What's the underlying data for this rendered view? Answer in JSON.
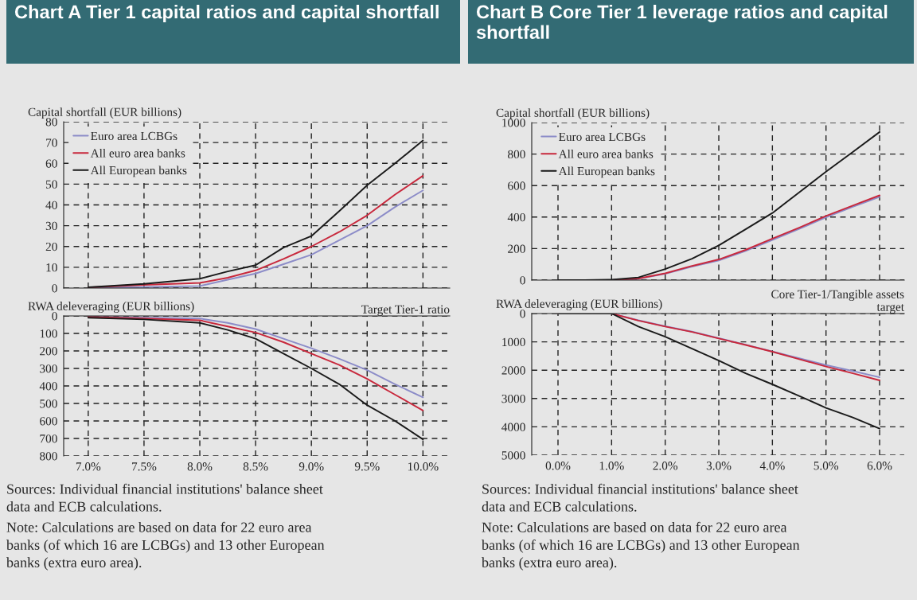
{
  "chart_data": [
    {
      "type": "line",
      "title": "Chart A Tier 1 capital ratios and capital shortfall",
      "ylabel": "Capital shortfall (EUR billions)",
      "x": [
        7.0,
        7.5,
        8.0,
        8.25,
        8.5,
        8.75,
        9.0,
        9.25,
        9.5,
        9.75,
        10.0
      ],
      "series": [
        {
          "name": "Euro area LCBGs",
          "color": "#8c8cc8",
          "values": [
            0,
            0.5,
            1,
            4,
            7,
            11.5,
            16,
            23,
            30,
            39,
            47
          ]
        },
        {
          "name": "All euro area banks",
          "color": "#c8283c",
          "values": [
            0.3,
            1.5,
            2.5,
            5,
            8.5,
            14,
            20,
            27,
            35,
            45,
            54
          ]
        },
        {
          "name": "All European banks",
          "color": "#1a1a1a",
          "values": [
            0.4,
            2,
            4.5,
            8,
            11,
            19.5,
            25,
            37,
            49.5,
            60,
            71
          ]
        }
      ],
      "xlim": [
        6.78,
        10.24
      ],
      "xticks": [
        {
          "value": 7.0,
          "label": null
        },
        {
          "value": 7.5,
          "label": null
        },
        {
          "value": 8.0,
          "label": null
        },
        {
          "value": 8.5,
          "label": null
        },
        {
          "value": 9.0,
          "label": null
        },
        {
          "value": 9.5,
          "label": null
        },
        {
          "value": 10.0,
          "label": null
        }
      ],
      "ylim": [
        0,
        80
      ],
      "yticks": [
        0,
        10,
        20,
        30,
        40,
        50,
        60,
        70,
        80
      ],
      "tick_labels": "y",
      "grid": true,
      "legend": "top left",
      "line_style": "solid"
    },
    {
      "type": "line",
      "ylabel": "RWA deleveraging (EUR billions)",
      "xlabel": "Target Tier-1 ratio",
      "x": [
        7.0,
        7.5,
        8.0,
        8.25,
        8.5,
        8.75,
        9.0,
        9.25,
        9.5,
        9.75,
        10.0
      ],
      "series": [
        {
          "color": "#8c8cc8",
          "values": [
            5,
            10,
            15,
            40,
            75,
            130,
            185,
            245,
            310,
            390,
            465
          ]
        },
        {
          "color": "#c8283c",
          "values": [
            5,
            15,
            25,
            60,
            95,
            150,
            215,
            280,
            360,
            450,
            540
          ]
        },
        {
          "color": "#1a1a1a",
          "values": [
            10,
            20,
            40,
            80,
            130,
            215,
            300,
            390,
            510,
            600,
            705
          ]
        }
      ],
      "xlim": [
        6.78,
        10.24
      ],
      "xticks": [
        {
          "value": 7.0,
          "label": "7.0%"
        },
        {
          "value": 7.5,
          "label": "7.5%"
        },
        {
          "value": 8.0,
          "label": "8.0%"
        },
        {
          "value": 8.5,
          "label": "8.5%"
        },
        {
          "value": 9.0,
          "label": "9.0%"
        },
        {
          "value": 9.5,
          "label": "9.5%"
        },
        {
          "value": 10.0,
          "label": "10.0%"
        }
      ],
      "ylim": [
        800,
        0
      ],
      "yticks": [
        0,
        100,
        200,
        300,
        400,
        500,
        600,
        700,
        800
      ],
      "grid": true,
      "line_style": "solid",
      "annotations": [
        "Sources: Individual financial institutions' balance sheet\ndata and ECB calculations.",
        "Note: Calculations are based on data for 22 euro area\nbanks (of which 16 are LCBGs) and 13 other European\nbanks (extra euro area)."
      ]
    },
    {
      "type": "line",
      "title": "Chart B Core Tier 1 leverage ratios and capital shortfall",
      "ylabel": "Capital shortfall (EUR billions)",
      "x": [
        0,
        0.5,
        1.0,
        1.5,
        2.0,
        2.5,
        3.0,
        3.5,
        4.0,
        4.5,
        5.0,
        5.5,
        6.0
      ],
      "series": [
        {
          "name": "Euro area LCBGs",
          "color": "#8c8cc8",
          "values": [
            0,
            0,
            0,
            8,
            40,
            85,
            125,
            185,
            255,
            325,
            398,
            465,
            528
          ]
        },
        {
          "name": "All euro area banks",
          "color": "#c8283c",
          "values": [
            null,
            null,
            0,
            10,
            43,
            90,
            131,
            192,
            263,
            333,
            407,
            473,
            538
          ]
        },
        {
          "name": "All European banks",
          "color": "#1a1a1a",
          "values": [
            0,
            0,
            3,
            17,
            70,
            136,
            220,
            323,
            426,
            557,
            688,
            813,
            940
          ]
        }
      ],
      "xlim": [
        -0.49,
        6.46
      ],
      "xticks": [
        {
          "value": 0,
          "label": null
        },
        {
          "value": 1,
          "label": null
        },
        {
          "value": 2,
          "label": null
        },
        {
          "value": 3,
          "label": null
        },
        {
          "value": 4,
          "label": null
        },
        {
          "value": 5,
          "label": null
        },
        {
          "value": 6,
          "label": null
        }
      ],
      "ylim": [
        0,
        1000
      ],
      "yticks": [
        0,
        200,
        400,
        600,
        800,
        1000
      ],
      "tick_labels": "y",
      "grid": true,
      "legend": "top left",
      "line_style": "solid"
    },
    {
      "type": "line",
      "ylabel": "RWA deleveraging (EUR billions)",
      "xlabel": "Core Tier-1/Tangible assets\ntarget",
      "x": [
        0,
        0.5,
        1.0,
        1.5,
        2.0,
        2.5,
        3.0,
        3.5,
        4.0,
        4.5,
        5.0,
        5.5,
        6.0
      ],
      "series": [
        {
          "color": "#8c8cc8",
          "values": [
            0,
            0,
            0,
            240,
            450,
            640,
            870,
            1100,
            1340,
            1580,
            1820,
            2030,
            2250
          ]
        },
        {
          "color": "#c8283c",
          "values": [
            0,
            0,
            0,
            250,
            460,
            650,
            880,
            1110,
            1350,
            1610,
            1870,
            2110,
            2360
          ]
        },
        {
          "color": "#1a1a1a",
          "values": [
            0,
            0,
            0,
            460,
            820,
            1240,
            1660,
            2110,
            2500,
            2910,
            3330,
            3670,
            4060
          ]
        }
      ],
      "xlim": [
        -0.49,
        6.46
      ],
      "xticks": [
        {
          "value": 0,
          "label": "0.0%"
        },
        {
          "value": 1,
          "label": "1.0%"
        },
        {
          "value": 2,
          "label": "2.0%"
        },
        {
          "value": 3,
          "label": "3.0%"
        },
        {
          "value": 4,
          "label": "4.0%"
        },
        {
          "value": 5,
          "label": "5.0%"
        },
        {
          "value": 6,
          "label": "6.0%"
        }
      ],
      "ylim": [
        5000,
        0
      ],
      "yticks": [
        0,
        1000,
        2000,
        3000,
        4000,
        5000
      ],
      "grid": true,
      "line_style": "solid",
      "annotations": [
        "Sources: Individual financial institutions' balance sheet\ndata and ECB calculations.",
        "Note: Calculations are based on data for 22 euro area\nbanks (of which 16 are LCBGs) and 13 other European\nbanks (extra euro area)."
      ]
    }
  ]
}
